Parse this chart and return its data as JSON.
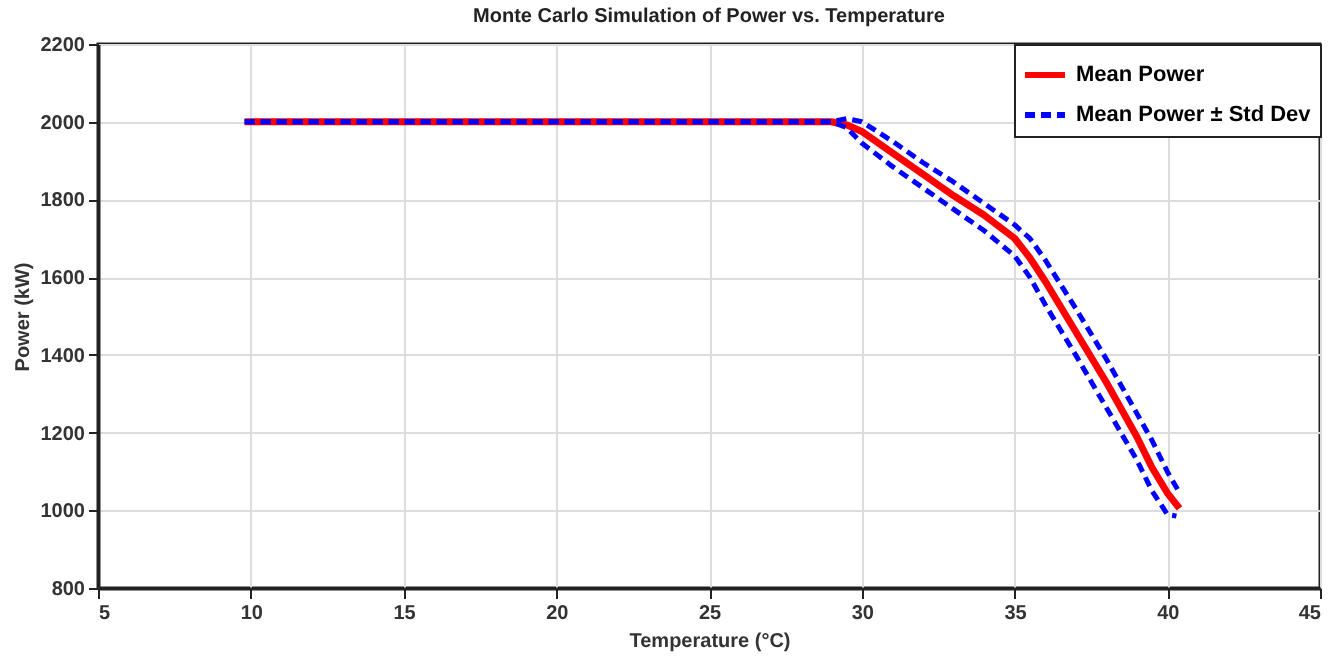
{
  "chart_data": {
    "type": "line",
    "title": "Monte Carlo Simulation of Power vs. Temperature",
    "xlabel": "Temperature (°C)",
    "ylabel": "Power (kW)",
    "xlim": [
      5,
      45
    ],
    "xticks": [
      5,
      10,
      15,
      20,
      25,
      30,
      35,
      40,
      45
    ],
    "ylim": [
      800,
      2200
    ],
    "yticks": [
      800,
      1000,
      1200,
      1400,
      1600,
      1800,
      2000,
      2200
    ],
    "grid": true,
    "legend": "top right",
    "series": [
      {
        "name": "Mean Power",
        "color": "#ff0000",
        "line_style": "solid",
        "x": [
          9.8,
          29,
          29.5,
          30,
          31,
          32,
          33,
          34,
          35,
          35.5,
          36,
          37,
          38,
          39,
          39.5,
          40,
          40.4
        ],
        "values": [
          2000,
          2000,
          1992,
          1975,
          1920,
          1865,
          1810,
          1760,
          1700,
          1650,
          1590,
          1460,
          1330,
          1190,
          1110,
          1045,
          1005
        ]
      },
      {
        "name": "Mean Power ± Std Dev",
        "color": "#0000ff",
        "line_style": "dashed",
        "x": [
          9.8,
          29,
          29.5,
          30,
          31,
          32,
          33,
          34,
          35,
          35.5,
          36,
          37,
          38,
          39,
          39.5,
          40,
          40.4
        ],
        "values": [
          2000,
          2000,
          2008,
          2000,
          1950,
          1895,
          1845,
          1790,
          1735,
          1700,
          1645,
          1520,
          1390,
          1250,
          1180,
          1100,
          1045
        ]
      },
      {
        "color": "#0000ff",
        "line_style": "dashed",
        "x": [
          9.8,
          29,
          29.5,
          30,
          31,
          32,
          33,
          34,
          35,
          35.5,
          36,
          37,
          38,
          39,
          39.5,
          40,
          40.3
        ],
        "values": [
          2000,
          2000,
          1985,
          1945,
          1885,
          1830,
          1775,
          1720,
          1655,
          1600,
          1530,
          1400,
          1265,
          1130,
          1050,
          990,
          985
        ]
      }
    ]
  }
}
